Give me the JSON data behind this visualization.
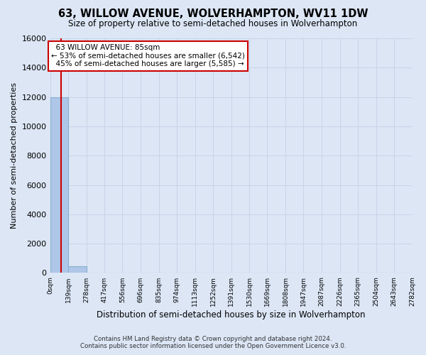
{
  "title": "63, WILLOW AVENUE, WOLVERHAMPTON, WV11 1DW",
  "subtitle": "Size of property relative to semi-detached houses in Wolverhampton",
  "xlabel": "Distribution of semi-detached houses by size in Wolverhampton",
  "ylabel": "Number of semi-detached properties",
  "footer_line1": "Contains HM Land Registry data © Crown copyright and database right 2024.",
  "footer_line2": "Contains public sector information licensed under the Open Government Licence v3.0.",
  "property_size": 85,
  "property_label": "63 WILLOW AVENUE: 85sqm",
  "pct_smaller": 53,
  "count_smaller": 6542,
  "pct_larger": 45,
  "count_larger": 5585,
  "bin_edges": [
    0,
    139,
    278,
    417,
    556,
    696,
    835,
    974,
    1113,
    1252,
    1391,
    1530,
    1669,
    1808,
    1947,
    2087,
    2226,
    2365,
    2504,
    2643,
    2782
  ],
  "bin_labels": [
    "0sqm",
    "139sqm",
    "278sqm",
    "417sqm",
    "556sqm",
    "696sqm",
    "835sqm",
    "974sqm",
    "1113sqm",
    "1252sqm",
    "1391sqm",
    "1530sqm",
    "1669sqm",
    "1808sqm",
    "1947sqm",
    "2087sqm",
    "2226sqm",
    "2365sqm",
    "2504sqm",
    "2643sqm",
    "2782sqm"
  ],
  "bar_heights": [
    12000,
    450,
    5,
    2,
    1,
    1,
    0,
    0,
    0,
    0,
    0,
    0,
    0,
    0,
    0,
    0,
    0,
    0,
    0,
    0
  ],
  "bar_color": "#aec6e8",
  "bar_edge_color": "#8aafd0",
  "grid_color": "#c8d4e8",
  "background_color": "#dce6f5",
  "plot_bg_color": "#dce6f5",
  "annotation_box_color": "#ffffff",
  "annotation_box_edge_color": "#cc0000",
  "vertical_line_color": "#cc0000",
  "ylim": [
    0,
    16000
  ],
  "yticks": [
    0,
    2000,
    4000,
    6000,
    8000,
    10000,
    12000,
    14000,
    16000
  ]
}
